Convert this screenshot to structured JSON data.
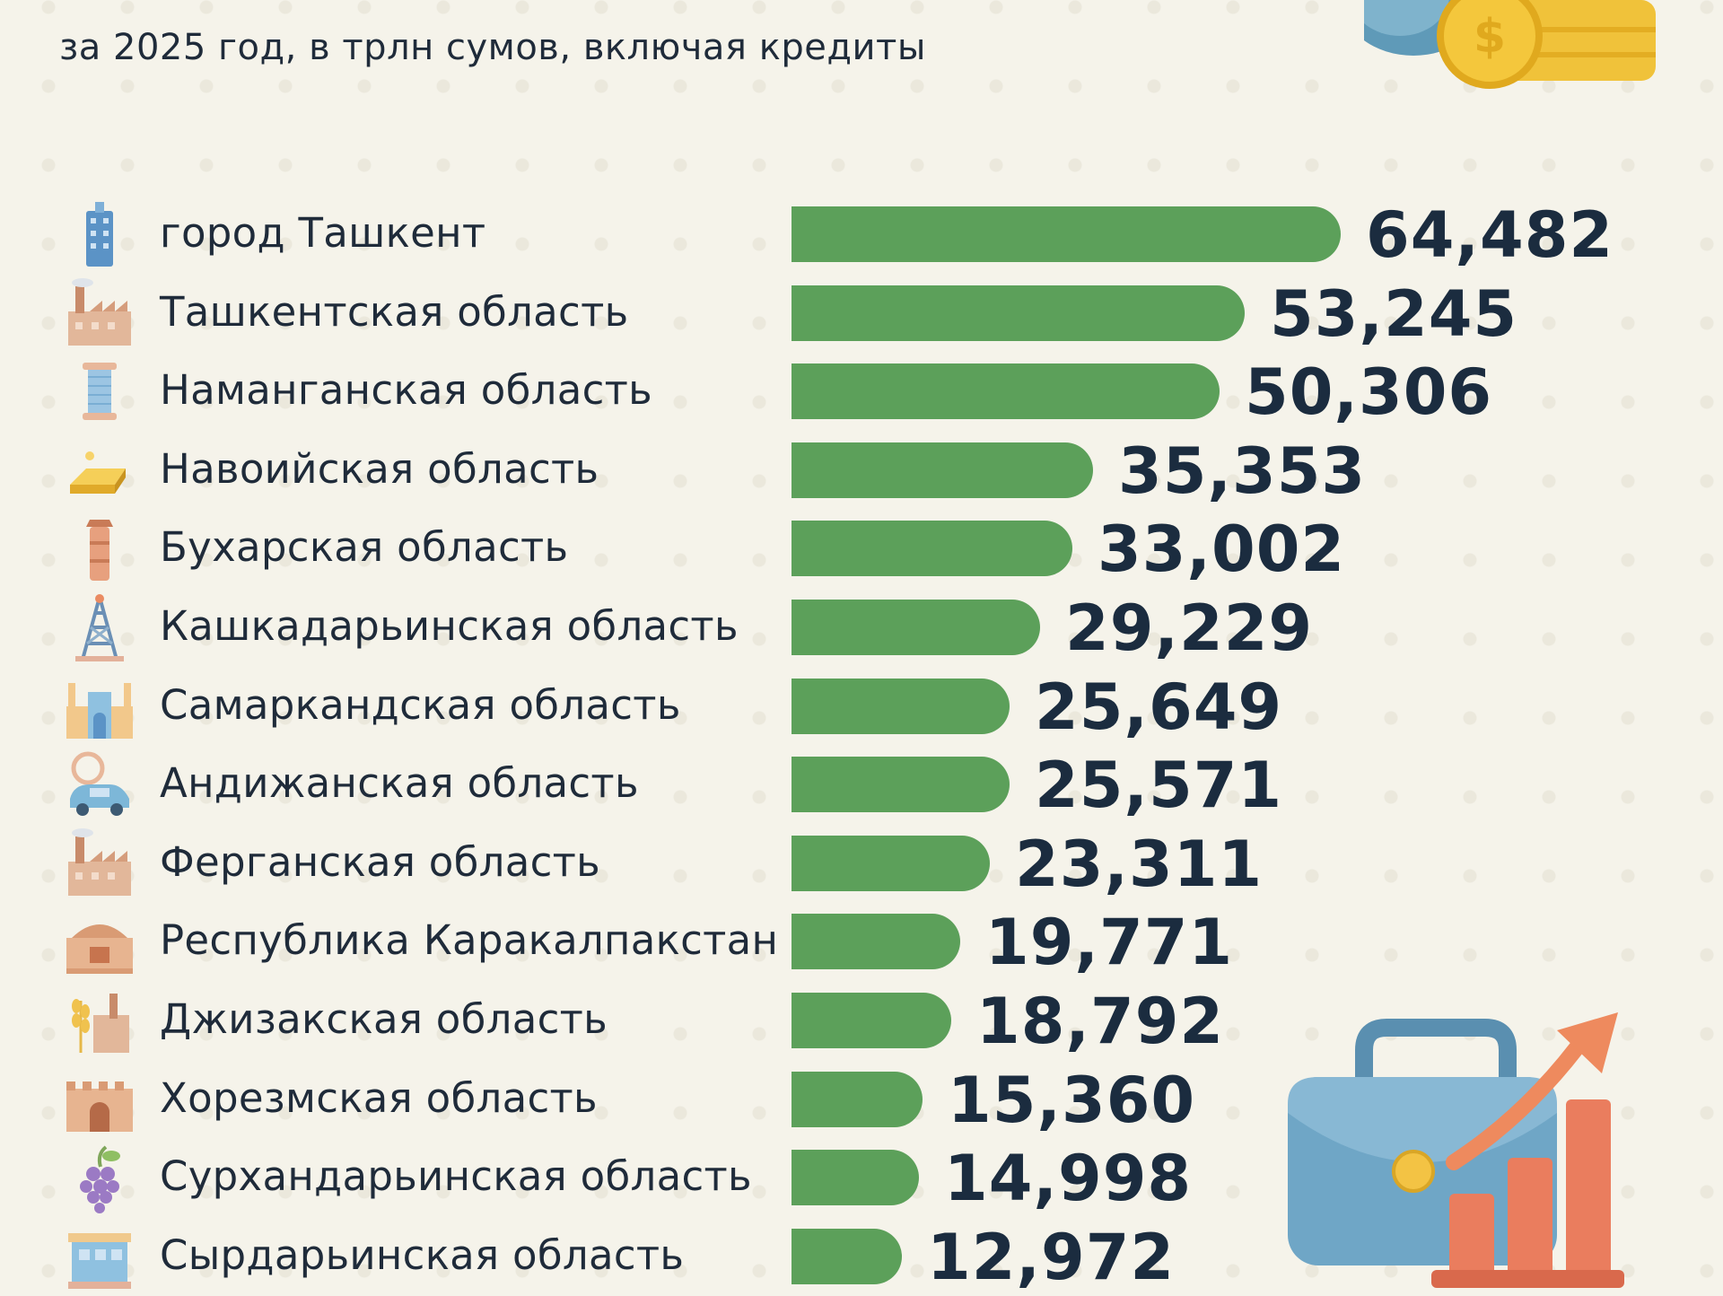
{
  "chart_data": {
    "type": "bar",
    "orientation": "horizontal",
    "subtitle": "за 2025 год, в трлн сумов, включая кредиты",
    "categories": [
      "город Ташкент",
      "Ташкентская область",
      "Наманганская область",
      "Навоийская область",
      "Бухарская область",
      "Кашкадарьинская область",
      "Самаркандская область",
      "Андижанская область",
      "Ферганская область",
      "Республика Каракалпакстан",
      "Джизакская область",
      "Хорезмская область",
      "Сурхандарьинская область",
      "Сырдарьинская область"
    ],
    "values": [
      64.482,
      53.245,
      50.306,
      35.353,
      33.002,
      29.229,
      25.649,
      25.571,
      23.311,
      19.771,
      18.792,
      15.36,
      14.998,
      12.972
    ],
    "value_labels": [
      "64,482",
      "53,245",
      "50,306",
      "35,353",
      "33,002",
      "29,229",
      "25,649",
      "25,571",
      "23,311",
      "19,771",
      "18,792",
      "15,360",
      "14,998",
      "12,972"
    ],
    "icons": [
      "skyscraper-icon",
      "factory-icon",
      "thread-spool-icon",
      "gold-bar-icon",
      "minaret-icon",
      "oil-derrick-icon",
      "registan-icon",
      "car-icon",
      "factory-icon",
      "fortress-icon",
      "wheat-factory-icon",
      "city-gate-icon",
      "grapes-icon",
      "market-building-icon"
    ],
    "colors": {
      "bar": "#5ca05a",
      "text": "#1b2c3f",
      "background": "#f5f3ea"
    }
  }
}
